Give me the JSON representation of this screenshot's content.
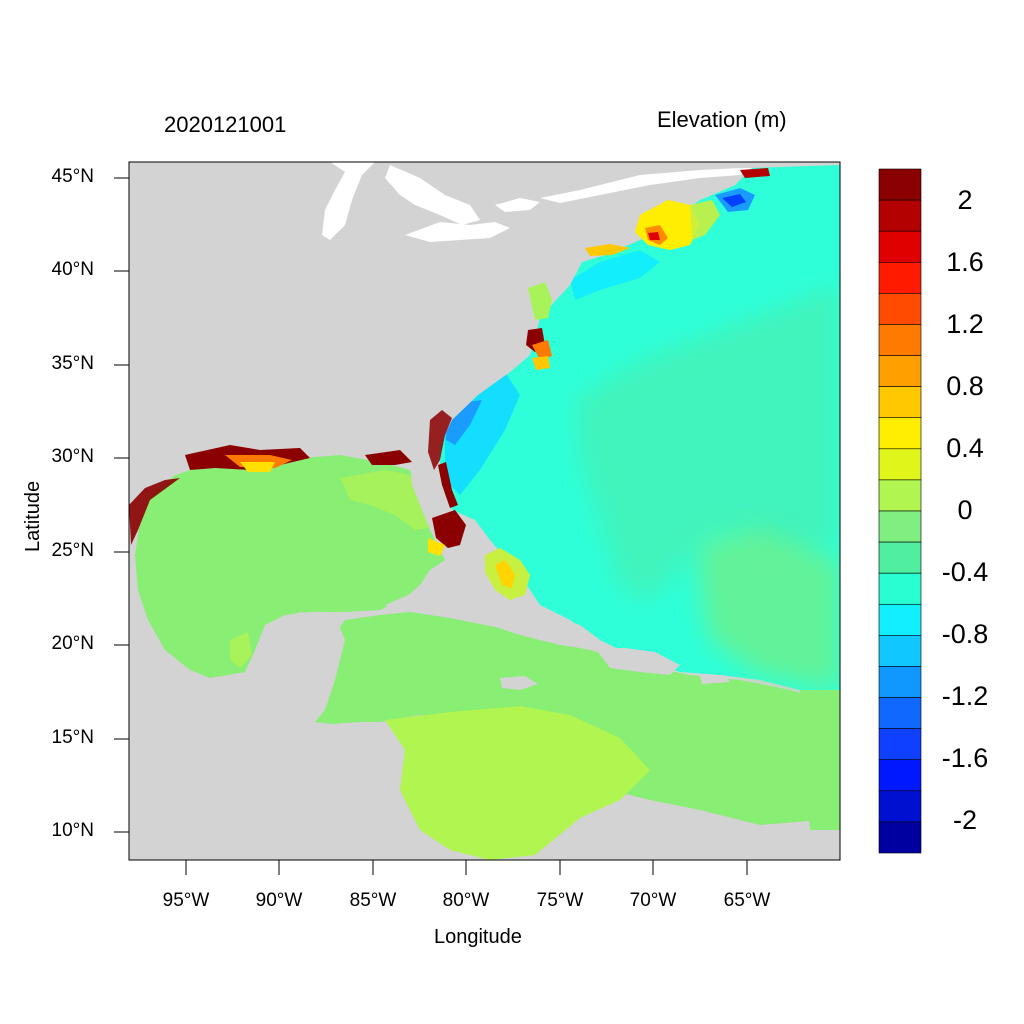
{
  "title_left": "2020121001",
  "title_right": "Elevation (m)",
  "x_axis_title": "Longitude",
  "y_axis_title": "Latitude",
  "lat_ticks": [
    "45°N",
    "40°N",
    "35°N",
    "30°N",
    "25°N",
    "20°N",
    "15°N",
    "10°N"
  ],
  "lon_ticks": [
    "95°W",
    "90°W",
    "85°W",
    "80°W",
    "75°W",
    "70°W",
    "65°W"
  ],
  "colorbar": {
    "labels": [
      "2",
      "1.6",
      "1.2",
      "0.8",
      "0.4",
      "0",
      "-0.4",
      "-0.8",
      "-1.2",
      "-1.6",
      "-2"
    ],
    "colors": [
      "#8b0000",
      "#b30000",
      "#e00000",
      "#ff1a00",
      "#ff4a00",
      "#ff7a00",
      "#ffa000",
      "#ffc800",
      "#ffee00",
      "#e0f51a",
      "#b0f550",
      "#80ee80",
      "#50eea0",
      "#28ffd0",
      "#10f0ff",
      "#10c8ff",
      "#1098ff",
      "#1068ff",
      "#1040ff",
      "#0018ff",
      "#0010d0",
      "#0000a0"
    ]
  },
  "map": {
    "land_color": "#d3d3d3",
    "extent": {
      "lon_min": -98,
      "lon_max": -60,
      "lat_min": 8.5,
      "lat_max": 46
    }
  }
}
